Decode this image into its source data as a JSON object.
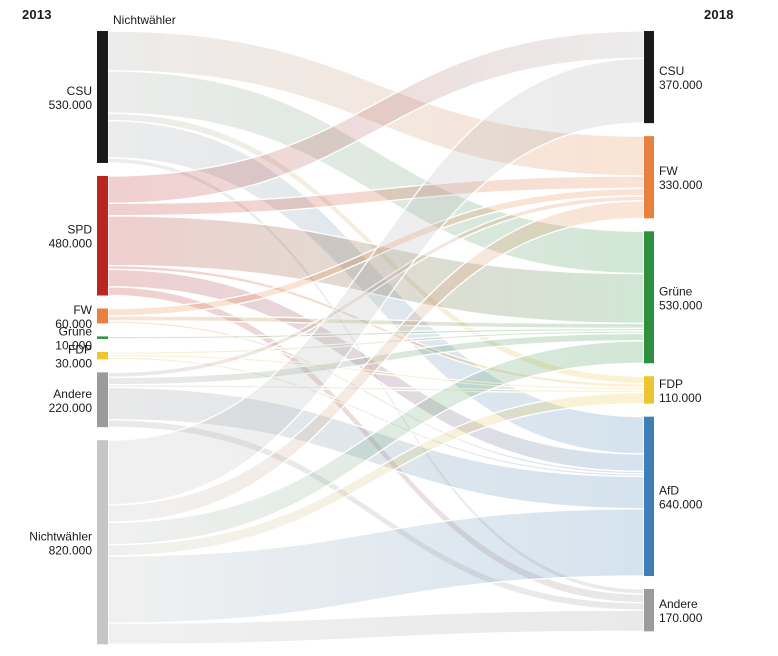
{
  "annotations": {
    "left_year": "2013",
    "right_year": "2018",
    "top_flow_label": "Nichtwähler"
  },
  "chart_data": {
    "type": "sankey",
    "title": "",
    "columns": [
      "2013",
      "2018"
    ],
    "unit": "voters",
    "link_values_estimated": true,
    "nodes_2013": [
      {
        "id": "csu-2013",
        "label": "CSU",
        "value": 530000,
        "value_label": "530.000",
        "color": "#1a1a1a",
        "flow_color": "#a8a8a8"
      },
      {
        "id": "spd-2013",
        "label": "SPD",
        "value": 480000,
        "value_label": "480.000",
        "color": "#b92521",
        "flow_color": "#b92521"
      },
      {
        "id": "fw-2013",
        "label": "FW",
        "value": 60000,
        "value_label": "60.000",
        "color": "#e8813d",
        "flow_color": "#e8813d"
      },
      {
        "id": "gruene-2013",
        "label": "Grüne",
        "value": 10000,
        "value_label": "10.000",
        "color": "#2e8f3f",
        "flow_color": "#2e8f3f"
      },
      {
        "id": "fdp-2013",
        "label": "FDP",
        "value": 30000,
        "value_label": "30.000",
        "color": "#eec52f",
        "flow_color": "#eec52f"
      },
      {
        "id": "andere-2013",
        "label": "Andere",
        "value": 220000,
        "value_label": "220.000",
        "color": "#9b9b9b",
        "flow_color": "#9b9b9b"
      },
      {
        "id": "nw-2013",
        "label": "Nichtwähler",
        "value": 820000,
        "value_label": "820.000",
        "color": "#c6c6c6",
        "flow_color": "#bdbdbd"
      }
    ],
    "nodes_2018": [
      {
        "id": "csu-2018",
        "label": "CSU",
        "value": 370000,
        "value_label": "370.000",
        "color": "#1a1a1a",
        "flow_color": "#a8a8a8"
      },
      {
        "id": "fw-2018",
        "label": "FW",
        "value": 330000,
        "value_label": "330.000",
        "color": "#e8813d",
        "flow_color": "#e8813d"
      },
      {
        "id": "gruene-2018",
        "label": "Grüne",
        "value": 530000,
        "value_label": "530.000",
        "color": "#2e8f3f",
        "flow_color": "#2e8f3f"
      },
      {
        "id": "fdp-2018",
        "label": "FDP",
        "value": 110000,
        "value_label": "110.000",
        "color": "#eec52f",
        "flow_color": "#eec52f"
      },
      {
        "id": "afd-2018",
        "label": "AfD",
        "value": 640000,
        "value_label": "640.000",
        "color": "#3e7fb5",
        "flow_color": "#3e7fb5"
      },
      {
        "id": "andere-2018",
        "label": "Andere",
        "value": 170000,
        "value_label": "170.000",
        "color": "#9b9b9b",
        "flow_color": "#9b9b9b"
      }
    ],
    "links": [
      {
        "source": "csu-2013",
        "target": "fw-2018",
        "value": 160000
      },
      {
        "source": "csu-2013",
        "target": "gruene-2018",
        "value": 170000
      },
      {
        "source": "csu-2013",
        "target": "fdp-2018",
        "value": 30000
      },
      {
        "source": "csu-2013",
        "target": "afd-2018",
        "value": 150000
      },
      {
        "source": "csu-2013",
        "target": "andere-2018",
        "value": 20000
      },
      {
        "source": "spd-2013",
        "target": "csu-2018",
        "value": 110000
      },
      {
        "source": "spd-2013",
        "target": "fw-2018",
        "value": 50000
      },
      {
        "source": "spd-2013",
        "target": "gruene-2018",
        "value": 200000
      },
      {
        "source": "spd-2013",
        "target": "fdp-2018",
        "value": 15000
      },
      {
        "source": "spd-2013",
        "target": "afd-2018",
        "value": 70000
      },
      {
        "source": "spd-2013",
        "target": "andere-2018",
        "value": 35000
      },
      {
        "source": "fw-2013",
        "target": "fw-2018",
        "value": 30000
      },
      {
        "source": "fw-2013",
        "target": "gruene-2018",
        "value": 20000
      },
      {
        "source": "fw-2013",
        "target": "afd-2018",
        "value": 10000
      },
      {
        "source": "gruene-2013",
        "target": "gruene-2018",
        "value": 10000
      },
      {
        "source": "fdp-2013",
        "target": "gruene-2018",
        "value": 10000
      },
      {
        "source": "fdp-2013",
        "target": "fdp-2018",
        "value": 10000
      },
      {
        "source": "fdp-2013",
        "target": "afd-2018",
        "value": 10000
      },
      {
        "source": "andere-2013",
        "target": "fw-2018",
        "value": 20000
      },
      {
        "source": "andere-2013",
        "target": "gruene-2018",
        "value": 30000
      },
      {
        "source": "andere-2013",
        "target": "fdp-2018",
        "value": 10000
      },
      {
        "source": "andere-2013",
        "target": "afd-2018",
        "value": 130000
      },
      {
        "source": "andere-2013",
        "target": "andere-2018",
        "value": 30000
      },
      {
        "source": "nw-2013",
        "target": "csu-2018",
        "value": 260000
      },
      {
        "source": "nw-2013",
        "target": "fw-2018",
        "value": 70000
      },
      {
        "source": "nw-2013",
        "target": "gruene-2018",
        "value": 90000
      },
      {
        "source": "nw-2013",
        "target": "fdp-2018",
        "value": 45000
      },
      {
        "source": "nw-2013",
        "target": "afd-2018",
        "value": 270000
      },
      {
        "source": "nw-2013",
        "target": "andere-2018",
        "value": 85000
      }
    ]
  }
}
